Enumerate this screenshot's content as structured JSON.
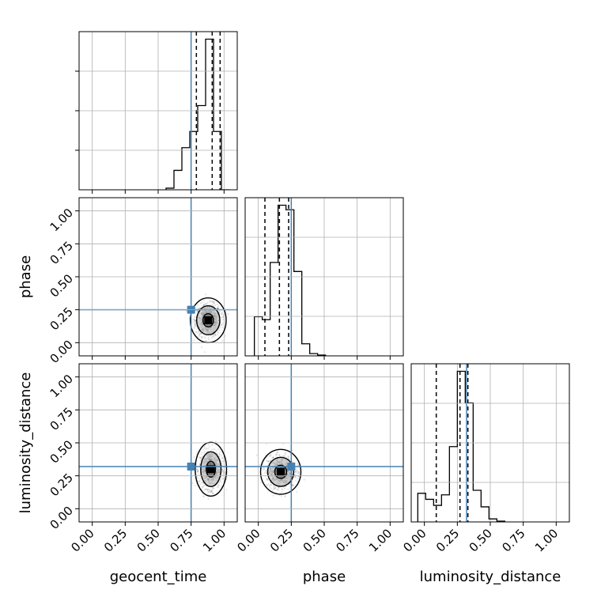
{
  "chart_data": {
    "type": "corner",
    "parameters": [
      "geocent_time",
      "phase",
      "luminosity_distance"
    ],
    "axis_range": [
      -0.1,
      1.1
    ],
    "tick_labels": [
      "0.00",
      "0.25",
      "0.50",
      "0.75",
      "1.00"
    ],
    "grid": true,
    "truths": {
      "geocent_time": 0.75,
      "phase": 0.25,
      "luminosity_distance": 0.32,
      "color": "#4682b4"
    },
    "quantile_lines": {
      "geocent_time": [
        0.79,
        0.91,
        0.97
      ],
      "phase": [
        0.05,
        0.16,
        0.23
      ],
      "luminosity_distance": [
        0.09,
        0.27,
        0.33
      ]
    },
    "histograms": {
      "geocent_time": {
        "bin_edges": [
          0.56,
          0.62,
          0.68,
          0.74,
          0.8,
          0.86,
          0.92,
          0.98,
          1.04
        ],
        "counts": [
          0.01,
          0.12,
          0.26,
          0.36,
          0.52,
          0.93,
          0.36,
          0.0
        ]
      },
      "phase": {
        "bin_edges": [
          -0.03,
          0.03,
          0.09,
          0.15,
          0.21,
          0.27,
          0.33,
          0.39,
          0.45,
          0.51
        ],
        "counts": [
          0.26,
          0.24,
          0.62,
          1.0,
          0.97,
          0.56,
          0.08,
          0.015,
          0.005
        ]
      },
      "luminosity_distance": {
        "bin_edges": [
          -0.05,
          0.01,
          0.07,
          0.13,
          0.19,
          0.25,
          0.31,
          0.37,
          0.43,
          0.49,
          0.55,
          0.61
        ],
        "counts": [
          0.19,
          0.15,
          0.11,
          0.18,
          0.5,
          1.0,
          0.79,
          0.21,
          0.1,
          0.02,
          0.005
        ]
      }
    },
    "scatter_2d": [
      {
        "x": "geocent_time",
        "y": "phase",
        "center": [
          0.88,
          0.17
        ],
        "spread": [
          0.08,
          0.1
        ]
      },
      {
        "x": "geocent_time",
        "y": "luminosity_distance",
        "center": [
          0.9,
          0.3
        ],
        "spread": [
          0.07,
          0.12
        ]
      },
      {
        "x": "phase",
        "y": "luminosity_distance",
        "center": [
          0.17,
          0.28
        ],
        "spread": [
          0.09,
          0.1
        ]
      }
    ]
  }
}
